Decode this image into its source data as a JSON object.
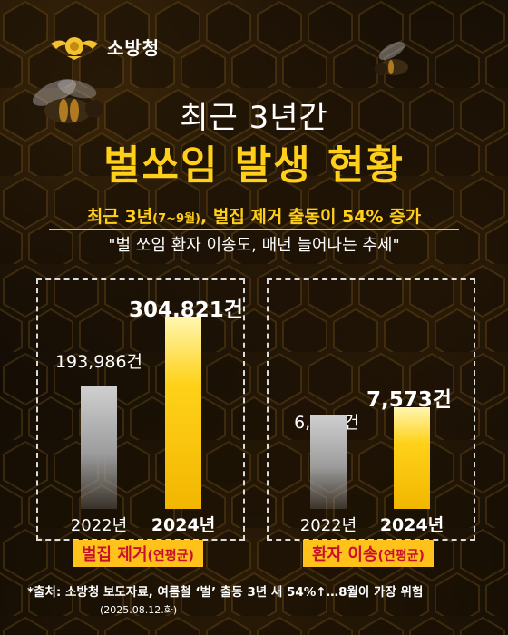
{
  "brand": {
    "name": "소방청",
    "emblem_icon": "fire-agency-emblem-icon"
  },
  "title": {
    "line1": "최근 3년간",
    "line2": "벌쏘임 발생 현황"
  },
  "subtitle": {
    "pre": "최근 3년",
    "period": "(7~9월)",
    "post": ", 벌집 제거 출동이 54% 증가"
  },
  "quote": "\"벌 쏘임 환자 이송도, 매년 늘어나는 추세\"",
  "colors": {
    "accent": "#ffcf1a",
    "highlight_bg": "#ffc21a",
    "highlight_text": "#c8102e",
    "bar_past": "#a8a8a8",
    "bar_current": "#ffd21a"
  },
  "chart_data": [
    {
      "type": "bar",
      "title": "벌집 제거",
      "unit_label": "(연평균)",
      "categories": [
        "2022년",
        "2024년"
      ],
      "values": [
        193986,
        304821
      ],
      "value_labels": [
        "193,986건",
        "304,821건"
      ]
    },
    {
      "type": "bar",
      "title": "환자 이송",
      "unit_label": "(연평균)",
      "categories": [
        "2022년",
        "2024년"
      ],
      "values": [
        6953,
        7573
      ],
      "value_labels": [
        "6,953건",
        "7,573건"
      ]
    }
  ],
  "footer": {
    "source": "*출처: 소방청 보도자료, 여름철 ‘벌’ 출동 3년 새 54%↑…8월이 가장 위험",
    "date": "(2025.08.12.화)"
  }
}
